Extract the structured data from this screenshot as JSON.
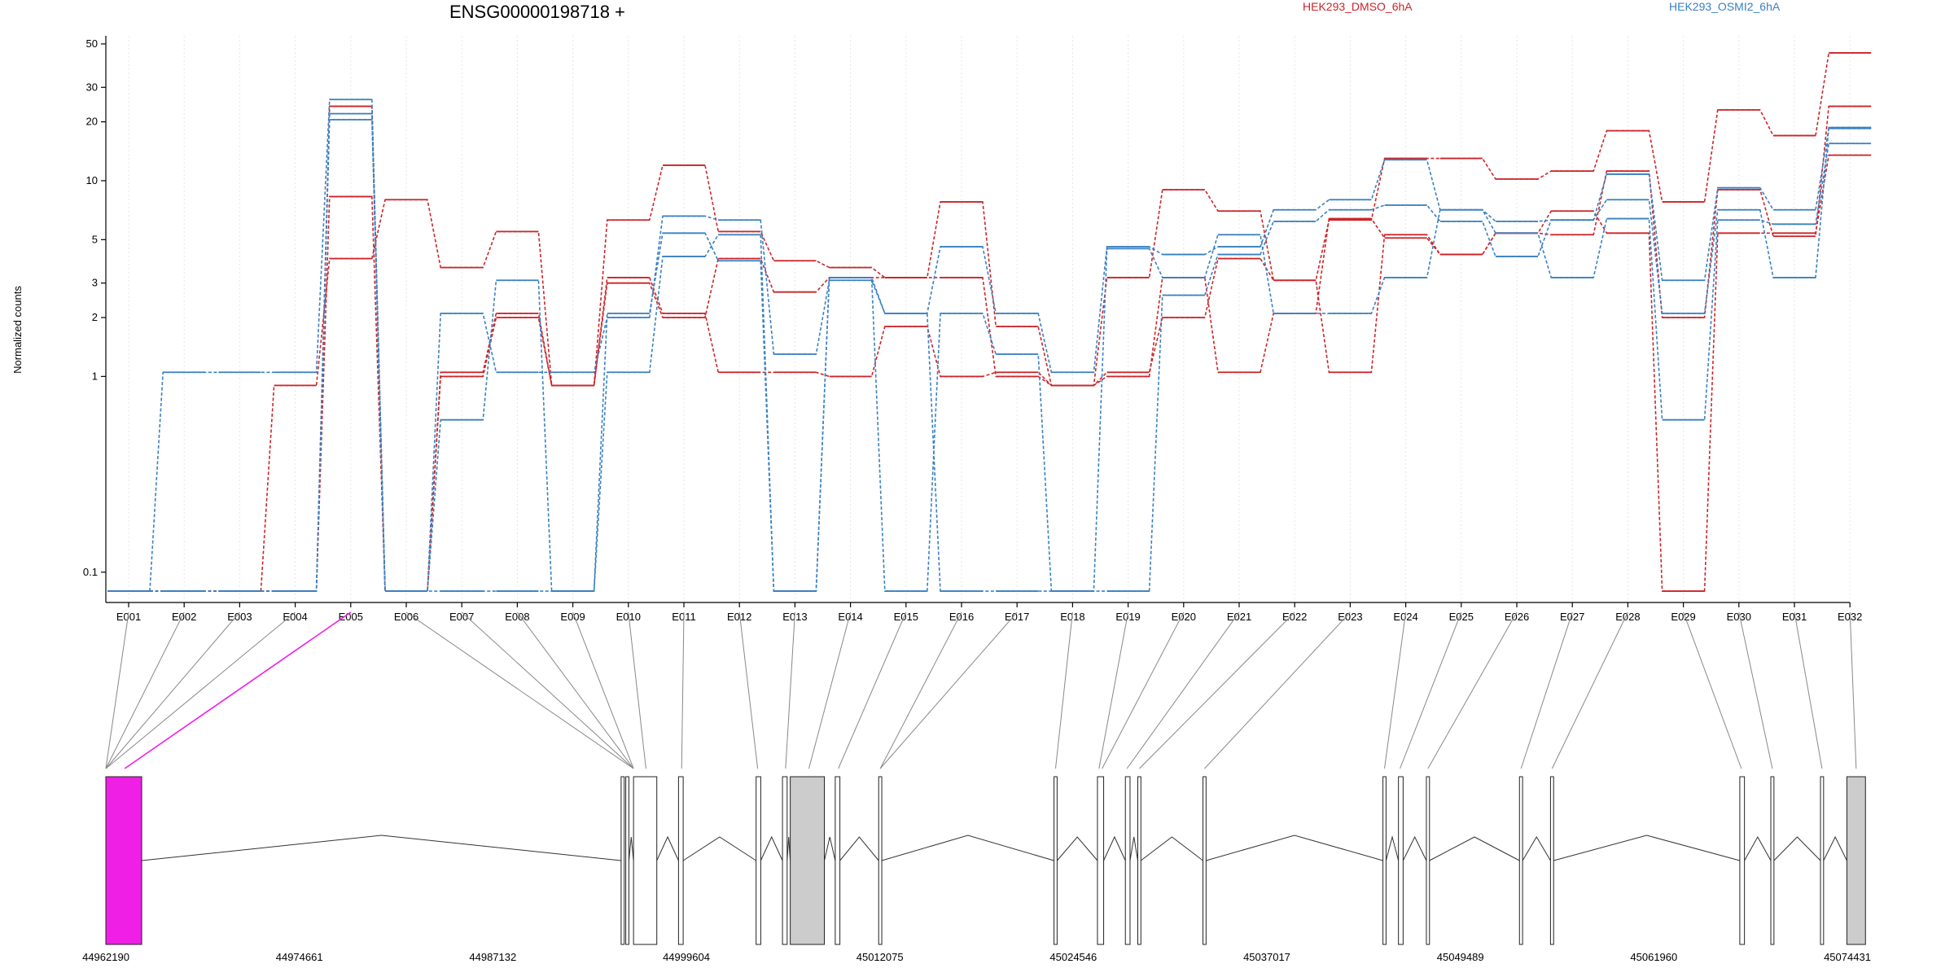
{
  "chart_data": {
    "type": "line",
    "title": "ENSG00000198718 +",
    "ylabel": "Normalized counts",
    "xlabel": "",
    "y_scale": "log",
    "ylim": [
      0.07,
      55
    ],
    "y_ticks": [
      0.1,
      1,
      2,
      3,
      5,
      10,
      20,
      30,
      50
    ],
    "y_tick_labels": [
      "0.1",
      "1",
      "2",
      "3",
      "5",
      "10",
      "20",
      "30",
      "50"
    ],
    "grid": "vertical dotted",
    "categories": [
      "E001",
      "E002",
      "E003",
      "E004",
      "E005",
      "E006",
      "E007",
      "E008",
      "E009",
      "E010",
      "E011",
      "E012",
      "E013",
      "E014",
      "E015",
      "E016",
      "E017",
      "E018",
      "E019",
      "E020",
      "E021",
      "E022",
      "E023",
      "E024",
      "E025",
      "E026",
      "E027",
      "E028",
      "E029",
      "E030",
      "E031",
      "E032"
    ],
    "legend": [
      {
        "name": "HEK293_DMSO_6hA",
        "color": "#cc2529"
      },
      {
        "name": "HEK293_OSMI2_6hA",
        "color": "#3a80c2"
      }
    ],
    "series": [
      {
        "group": "HEK293_DMSO_6hA",
        "color": "#cc2529",
        "values": [
          0.08,
          0.08,
          0.08,
          0.9,
          4,
          8,
          3.6,
          5.5,
          0.9,
          6.3,
          12,
          5.5,
          3.9,
          3.6,
          3.2,
          7.8,
          1.8,
          0.9,
          3.2,
          9,
          7,
          3.1,
          6.3,
          13,
          13,
          10.2,
          11.2,
          18,
          7.8,
          23,
          17,
          45
        ]
      },
      {
        "group": "HEK293_DMSO_6hA",
        "color": "#cc2529",
        "values": [
          0.08,
          0.08,
          0.08,
          0.08,
          24,
          0.08,
          1.05,
          2.1,
          0.9,
          3.2,
          2.1,
          1.05,
          1.05,
          1.0,
          1.8,
          1.0,
          1.05,
          0.9,
          1.05,
          2.0,
          4.0,
          3.1,
          1.05,
          5.3,
          4.2,
          5.4,
          5.3,
          11.2,
          2.0,
          9.0,
          5.2,
          24
        ]
      },
      {
        "group": "HEK293_DMSO_6hA",
        "color": "#cc2529",
        "values": [
          0.08,
          0.08,
          0.08,
          0.08,
          8.3,
          0.08,
          1.0,
          2.0,
          0.9,
          3.0,
          2.0,
          4.0,
          2.7,
          3.2,
          3.2,
          3.2,
          1.0,
          0.9,
          1.0,
          3.2,
          1.05,
          2.1,
          6.4,
          5.1,
          4.2,
          5.4,
          7.0,
          5.4,
          0.08,
          5.4,
          5.4,
          13.5
        ]
      },
      {
        "group": "HEK293_OSMI2_6hA",
        "color": "#3a80c2",
        "values": [
          0.08,
          1.05,
          1.05,
          1.05,
          26,
          0.08,
          2.1,
          1.05,
          1.05,
          2.0,
          6.6,
          6.3,
          1.3,
          3.1,
          2.1,
          4.6,
          2.1,
          1.05,
          4.6,
          4.2,
          4.6,
          7.1,
          8.0,
          12.8,
          7.1,
          6.2,
          6.3,
          10.8,
          3.1,
          9.2,
          7.1,
          18.5
        ]
      },
      {
        "group": "HEK293_OSMI2_6hA",
        "color": "#3a80c2",
        "values": [
          0.08,
          0.08,
          0.08,
          0.08,
          22,
          0.08,
          0.6,
          3.1,
          0.08,
          1.05,
          4.1,
          5.3,
          0.08,
          3.2,
          0.08,
          2.1,
          1.3,
          0.08,
          0.08,
          2.6,
          4.2,
          6.2,
          7.1,
          7.5,
          6.2,
          4.1,
          6.3,
          8.0,
          2.1,
          7.1,
          3.2,
          18.7
        ]
      },
      {
        "group": "HEK293_OSMI2_6hA",
        "color": "#3a80c2",
        "values": [
          0.08,
          0.08,
          0.08,
          0.08,
          20.5,
          0.08,
          0.08,
          0.08,
          0.08,
          2.1,
          5.4,
          3.9,
          0.08,
          3.2,
          2.1,
          0.08,
          0.08,
          0.08,
          4.5,
          3.2,
          5.3,
          2.1,
          2.1,
          3.2,
          7.1,
          5.4,
          3.2,
          6.4,
          0.6,
          6.3,
          6.0,
          15.5
        ]
      }
    ],
    "gene_model": {
      "genomic_ticks": [
        "44962190",
        "44974661",
        "44987132",
        "44999604",
        "45012075",
        "45024546",
        "45037017",
        "45049489",
        "45061960",
        "45074431"
      ],
      "genomic_range": [
        44962190,
        45074431
      ],
      "highlighted_exon": "E005",
      "highlight_color": "#f01fe6",
      "exon_color": "#ffffff",
      "utr_color": "#cccccc",
      "exons": [
        {
          "start": 44962190,
          "end": 44964500,
          "fill": "highlight"
        },
        {
          "start": 44995400,
          "end": 44995600,
          "fill": "white"
        },
        {
          "start": 44995700,
          "end": 44995900,
          "fill": "white"
        },
        {
          "start": 44996200,
          "end": 44997700,
          "fill": "white"
        },
        {
          "start": 44999100,
          "end": 44999400,
          "fill": "white"
        },
        {
          "start": 45004100,
          "end": 45004400,
          "fill": "white"
        },
        {
          "start": 45005800,
          "end": 45006100,
          "fill": "white"
        },
        {
          "start": 45006300,
          "end": 45008500,
          "fill": "grey"
        },
        {
          "start": 45009200,
          "end": 45009500,
          "fill": "white"
        },
        {
          "start": 45012000,
          "end": 45012200,
          "fill": "white"
        },
        {
          "start": 45023300,
          "end": 45023500,
          "fill": "white"
        },
        {
          "start": 45026100,
          "end": 45026500,
          "fill": "white"
        },
        {
          "start": 45027900,
          "end": 45028200,
          "fill": "white"
        },
        {
          "start": 45028700,
          "end": 45028900,
          "fill": "white"
        },
        {
          "start": 45032900,
          "end": 45033100,
          "fill": "white"
        },
        {
          "start": 45044500,
          "end": 45044700,
          "fill": "white"
        },
        {
          "start": 45045500,
          "end": 45045800,
          "fill": "white"
        },
        {
          "start": 45047300,
          "end": 45047500,
          "fill": "white"
        },
        {
          "start": 45053300,
          "end": 45053500,
          "fill": "white"
        },
        {
          "start": 45055300,
          "end": 45055500,
          "fill": "white"
        },
        {
          "start": 45067500,
          "end": 45067800,
          "fill": "white"
        },
        {
          "start": 45069500,
          "end": 45069700,
          "fill": "white"
        },
        {
          "start": 45072700,
          "end": 45072900,
          "fill": "white"
        },
        {
          "start": 45074400,
          "end": 45075600,
          "fill": "grey"
        }
      ],
      "exon_links": [
        44962190,
        44962190,
        44962190,
        44962190,
        44963400,
        44996200,
        44996200,
        44996200,
        44996200,
        44997000,
        44999300,
        45004200,
        45006000,
        45007500,
        45009400,
        45012100,
        45012100,
        45023400,
        45026200,
        45026400,
        45028000,
        45028800,
        45033000,
        45044600,
        45045600,
        45047400,
        45053400,
        45055400,
        45067600,
        45069600,
        45072800,
        45075000
      ]
    }
  }
}
